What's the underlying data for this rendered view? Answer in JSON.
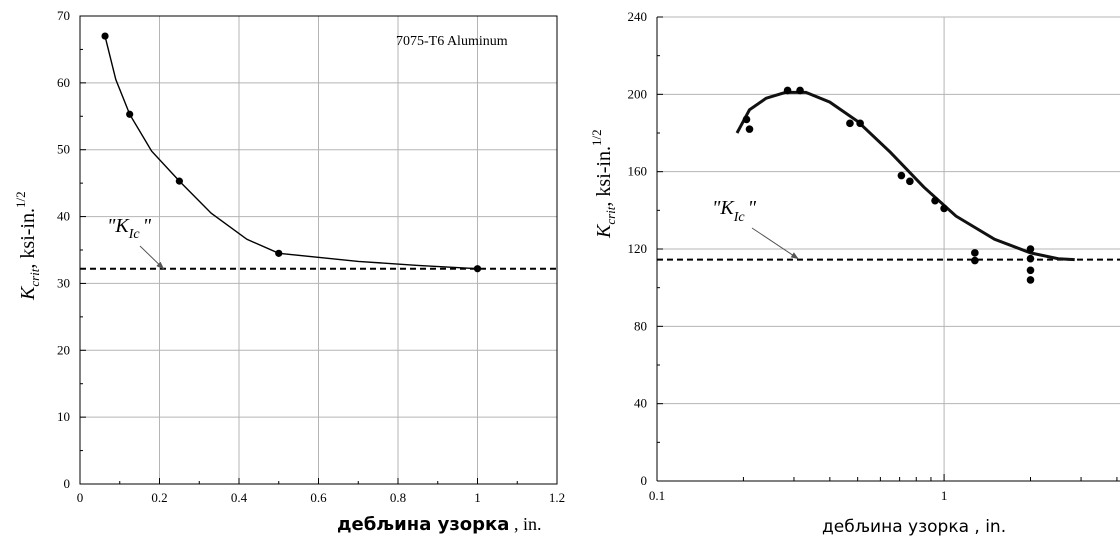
{
  "chart_data": [
    {
      "type": "line",
      "x_scale": "linear",
      "xlim": [
        0,
        1.2
      ],
      "ylim": [
        0,
        70
      ],
      "x_ticks": [
        0,
        0.2,
        0.4,
        0.6,
        0.8,
        1,
        1.2
      ],
      "x_tick_labels": [
        "0",
        "0.2",
        "0.4",
        "0.6",
        "0.8",
        "1",
        "1.2"
      ],
      "y_ticks": [
        0,
        10,
        20,
        30,
        40,
        50,
        60,
        70
      ],
      "y_tick_labels": [
        "0",
        "10",
        "20",
        "30",
        "40",
        "50",
        "60",
        "70"
      ],
      "grid": true,
      "annotation": "7075-T6 Aluminum",
      "xlabel_main": "дебљина узорка",
      "xlabel_unit": " , in.",
      "ylabel_k": "K",
      "ylabel_sub": "crit",
      "ylabel_rest": ", ksi-in.",
      "ylabel_sup": "1/2",
      "kic_label": "\"K",
      "kic_sub": "Ic",
      "kic_close": "\"",
      "kic_value": 32.2,
      "kic_arrow_target": [
        0.21,
        32.2
      ],
      "points": [
        {
          "x": 0.063,
          "y": 67.0
        },
        {
          "x": 0.125,
          "y": 55.3
        },
        {
          "x": 0.25,
          "y": 45.3
        },
        {
          "x": 0.5,
          "y": 34.5
        },
        {
          "x": 1.0,
          "y": 32.2
        }
      ],
      "curve": [
        {
          "x": 0.063,
          "y": 67.0
        },
        {
          "x": 0.09,
          "y": 60.5
        },
        {
          "x": 0.125,
          "y": 55.3
        },
        {
          "x": 0.18,
          "y": 49.8
        },
        {
          "x": 0.25,
          "y": 45.3
        },
        {
          "x": 0.33,
          "y": 40.5
        },
        {
          "x": 0.42,
          "y": 36.6
        },
        {
          "x": 0.5,
          "y": 34.5
        },
        {
          "x": 0.7,
          "y": 33.3
        },
        {
          "x": 0.85,
          "y": 32.7
        },
        {
          "x": 1.0,
          "y": 32.2
        }
      ]
    },
    {
      "type": "scatter",
      "x_scale": "log",
      "xlim": [
        0.1,
        4.1
      ],
      "ylim": [
        0,
        240
      ],
      "x_ticks": [
        0.1,
        1
      ],
      "x_tick_labels": [
        "0.1",
        "1"
      ],
      "y_ticks": [
        0,
        40,
        80,
        120,
        160,
        200,
        240
      ],
      "y_tick_labels": [
        "0",
        "40",
        "80",
        "120",
        "160",
        "200",
        "240"
      ],
      "grid": true,
      "xlabel": "дебљина узорка , in.",
      "ylabel_k": "K",
      "ylabel_sub": "crit",
      "ylabel_rest": ", ksi-in.",
      "ylabel_sup": "1/2",
      "kic_label": "\"K",
      "kic_sub": "Ic",
      "kic_close": "\"",
      "kic_value": 114.5,
      "kic_arrow_target": [
        0.31,
        115
      ],
      "points": [
        {
          "x": 0.205,
          "y": 187
        },
        {
          "x": 0.21,
          "y": 182
        },
        {
          "x": 0.285,
          "y": 202
        },
        {
          "x": 0.315,
          "y": 202
        },
        {
          "x": 0.47,
          "y": 185
        },
        {
          "x": 0.51,
          "y": 185
        },
        {
          "x": 0.71,
          "y": 158
        },
        {
          "x": 0.76,
          "y": 155
        },
        {
          "x": 0.93,
          "y": 145
        },
        {
          "x": 1.0,
          "y": 141
        },
        {
          "x": 1.28,
          "y": 118
        },
        {
          "x": 1.28,
          "y": 114
        },
        {
          "x": 2.0,
          "y": 120
        },
        {
          "x": 2.0,
          "y": 115
        },
        {
          "x": 2.0,
          "y": 109
        },
        {
          "x": 2.0,
          "y": 104
        }
      ],
      "curve": [
        {
          "x": 0.19,
          "y": 180
        },
        {
          "x": 0.21,
          "y": 192
        },
        {
          "x": 0.24,
          "y": 198
        },
        {
          "x": 0.28,
          "y": 201
        },
        {
          "x": 0.33,
          "y": 201
        },
        {
          "x": 0.4,
          "y": 196
        },
        {
          "x": 0.5,
          "y": 186
        },
        {
          "x": 0.65,
          "y": 170
        },
        {
          "x": 0.85,
          "y": 152
        },
        {
          "x": 1.1,
          "y": 137
        },
        {
          "x": 1.5,
          "y": 125
        },
        {
          "x": 2.0,
          "y": 118
        },
        {
          "x": 2.5,
          "y": 115
        },
        {
          "x": 2.85,
          "y": 114.5
        }
      ]
    }
  ]
}
